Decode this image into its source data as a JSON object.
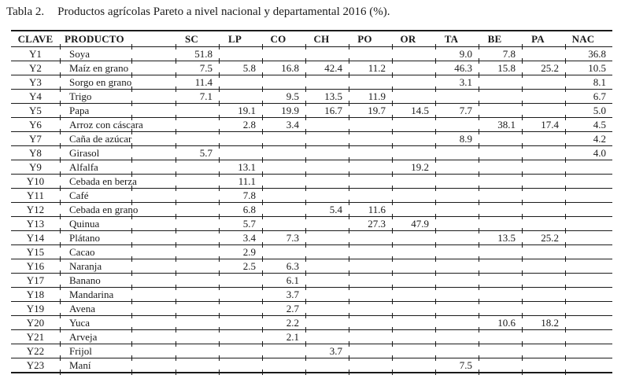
{
  "title": {
    "label": "Tabla 2.",
    "text": "Productos agrícolas Pareto a nivel nacional y departamental 2016 (%)."
  },
  "table": {
    "headers": [
      "CLAVE",
      "PRODUCTO",
      "SC",
      "LP",
      "CO",
      "CH",
      "PO",
      "OR",
      "TA",
      "BE",
      "PA",
      "NAC"
    ],
    "rows": [
      [
        "Y1",
        "Soya",
        "51.8",
        "",
        "",
        "",
        "",
        "",
        "9.0",
        "7.8",
        "",
        "36.8"
      ],
      [
        "Y2",
        "Maíz en grano",
        "7.5",
        "5.8",
        "16.8",
        "42.4",
        "11.2",
        "",
        "46.3",
        "15.8",
        "25.2",
        "10.5"
      ],
      [
        "Y3",
        "Sorgo en grano",
        "11.4",
        "",
        "",
        "",
        "",
        "",
        "3.1",
        "",
        "",
        "8.1"
      ],
      [
        "Y4",
        "Trigo",
        "7.1",
        "",
        "9.5",
        "13.5",
        "11.9",
        "",
        "",
        "",
        "",
        "6.7"
      ],
      [
        "Y5",
        "Papa",
        "",
        "19.1",
        "19.9",
        "16.7",
        "19.7",
        "14.5",
        "7.7",
        "",
        "",
        "5.0"
      ],
      [
        "Y6",
        "Arroz con cáscara",
        "",
        "2.8",
        "3.4",
        "",
        "",
        "",
        "",
        "38.1",
        "17.4",
        "4.5"
      ],
      [
        "Y7",
        "Caña de azúcar",
        "",
        "",
        "",
        "",
        "",
        "",
        "8.9",
        "",
        "",
        "4.2"
      ],
      [
        "Y8",
        "Girasol",
        "5.7",
        "",
        "",
        "",
        "",
        "",
        "",
        "",
        "",
        "4.0"
      ],
      [
        "Y9",
        "Alfalfa",
        "",
        "13.1",
        "",
        "",
        "",
        "19.2",
        "",
        "",
        "",
        ""
      ],
      [
        "Y10",
        "Cebada en berza",
        "",
        "11.1",
        "",
        "",
        "",
        "",
        "",
        "",
        "",
        ""
      ],
      [
        "Y11",
        "Café",
        "",
        "7.8",
        "",
        "",
        "",
        "",
        "",
        "",
        "",
        ""
      ],
      [
        "Y12",
        "Cebada en grano",
        "",
        "6.8",
        "",
        "5.4",
        "11.6",
        "",
        "",
        "",
        "",
        ""
      ],
      [
        "Y13",
        "Quinua",
        "",
        "5.7",
        "",
        "",
        "27.3",
        "47.9",
        "",
        "",
        "",
        ""
      ],
      [
        "Y14",
        "Plátano",
        "",
        "3.4",
        "7.3",
        "",
        "",
        "",
        "",
        "13.5",
        "25.2",
        ""
      ],
      [
        "Y15",
        "Cacao",
        "",
        "2.9",
        "",
        "",
        "",
        "",
        "",
        "",
        "",
        ""
      ],
      [
        "Y16",
        "Naranja",
        "",
        "2.5",
        "6.3",
        "",
        "",
        "",
        "",
        "",
        "",
        ""
      ],
      [
        "Y17",
        "Banano",
        "",
        "",
        "6.1",
        "",
        "",
        "",
        "",
        "",
        "",
        ""
      ],
      [
        "Y18",
        "Mandarina",
        "",
        "",
        "3.7",
        "",
        "",
        "",
        "",
        "",
        "",
        ""
      ],
      [
        "Y19",
        "Avena",
        "",
        "",
        "2.7",
        "",
        "",
        "",
        "",
        "",
        "",
        ""
      ],
      [
        "Y20",
        "Yuca",
        "",
        "",
        "2.2",
        "",
        "",
        "",
        "",
        "10.6",
        "18.2",
        ""
      ],
      [
        "Y21",
        "Arveja",
        "",
        "",
        "2.1",
        "",
        "",
        "",
        "",
        "",
        "",
        ""
      ],
      [
        "Y22",
        "Frijol",
        "",
        "",
        "",
        "3.7",
        "",
        "",
        "",
        "",
        "",
        ""
      ],
      [
        "Y23",
        "Maní",
        "",
        "",
        "",
        "",
        "",
        "",
        "7.5",
        "",
        "",
        ""
      ]
    ]
  }
}
